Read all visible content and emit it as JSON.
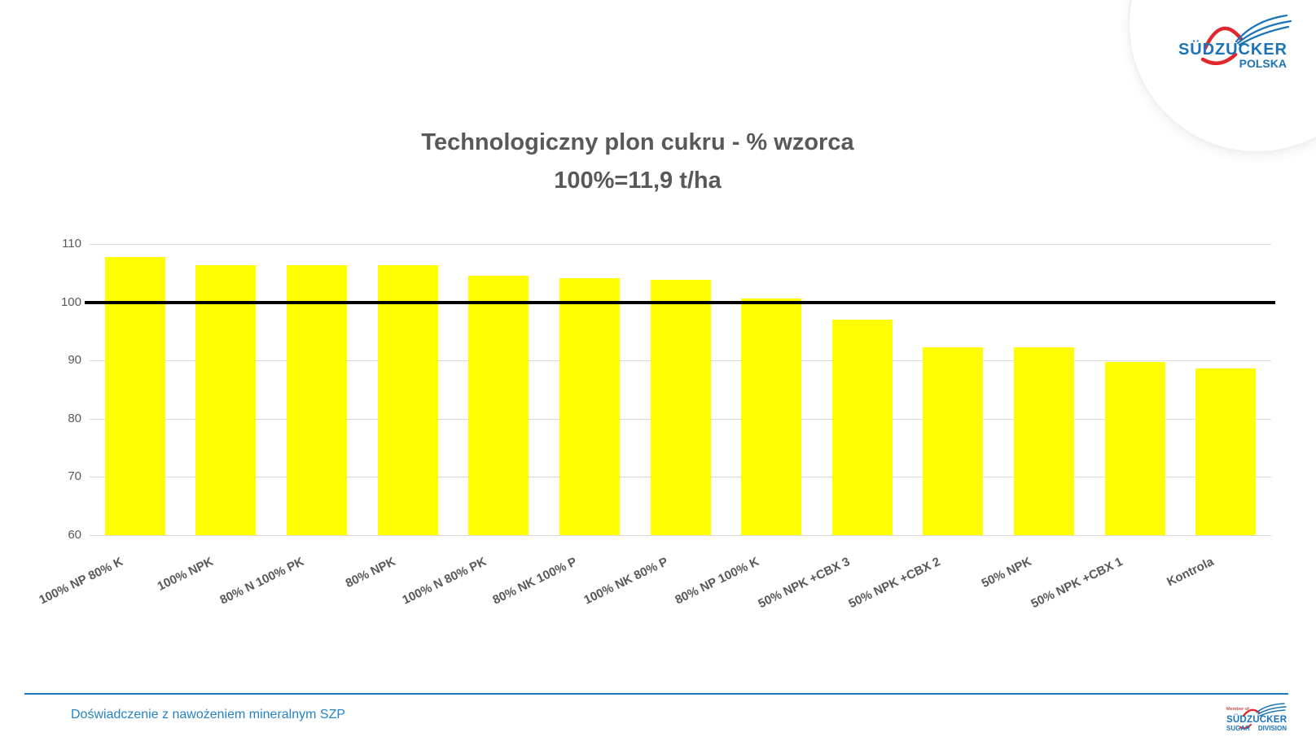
{
  "header_logo": {
    "brand": "SÜDZUCKER",
    "sub_brand": "POLSKA",
    "blue": "#1B74B8",
    "red": "#E2262D"
  },
  "chart_data": {
    "type": "bar",
    "title": "Technologiczny plon cukru - % wzorca",
    "subtitle": "100%=11,9 t/ha",
    "categories": [
      "100% NP 80% K",
      "100% NPK",
      "80% N 100% PK",
      "80% NPK",
      "100% N 80% PK",
      "80% NK 100% P",
      "100% NK 80% P",
      "80% NP 100% K",
      "50% NPK +CBX 3",
      "50% NPK +CBX 2",
      "50% NPK",
      "50% NPK +CBX 1",
      "Kontrola"
    ],
    "values": [
      107.7,
      106.4,
      106.3,
      106.3,
      104.6,
      104.2,
      103.8,
      100.6,
      97.0,
      92.3,
      92.2,
      89.7,
      88.7
    ],
    "xlabel": "",
    "ylabel": "",
    "ylim": [
      60,
      110
    ],
    "yticks": [
      60,
      70,
      80,
      90,
      100,
      110
    ],
    "grid": true,
    "legend": "none",
    "bar_color": "#FFFF00",
    "gridline_color": "#D9D9D9",
    "reference_line": {
      "value": 100,
      "color": "#000000"
    },
    "title_color": "#595959",
    "axis_text_color": "#595959"
  },
  "footer": {
    "caption": "Doświadczenie z nawożeniem mineralnym SZP",
    "caption_color": "#2583C5",
    "line_color": "#2077BE",
    "logo": {
      "member_of": "Member of",
      "member_of_color": "#C0504D",
      "brand": "SÜDZUCKER",
      "division_left": "SUGAR",
      "division_right": "DIVISION",
      "blue": "#1B74B8",
      "red": "#E2262D"
    }
  }
}
